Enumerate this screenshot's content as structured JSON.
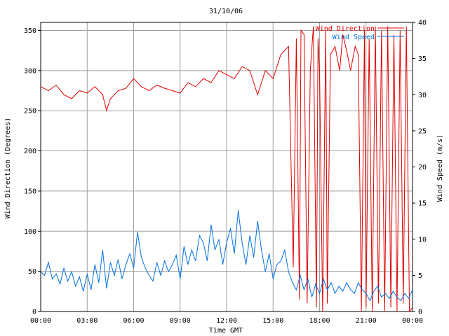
{
  "chart_data": {
    "type": "line",
    "title": "31/10/06",
    "xlabel": "Time GMT",
    "ylabel_left": "Wind Direction (Degrees)",
    "ylabel_right": "Wind Speed (m/s)",
    "x_unit": "hours GMT",
    "xlim": [
      0,
      24
    ],
    "ylim_left": [
      0,
      360
    ],
    "ylim_right": [
      0,
      40
    ],
    "x_ticks": [
      {
        "value": 0,
        "label": "00:00"
      },
      {
        "value": 3,
        "label": "03:00"
      },
      {
        "value": 6,
        "label": "06:00"
      },
      {
        "value": 9,
        "label": "09:00"
      },
      {
        "value": 12,
        "label": "12:00"
      },
      {
        "value": 15,
        "label": "15:00"
      },
      {
        "value": 18,
        "label": "18:00"
      },
      {
        "value": 21,
        "label": "21:00"
      },
      {
        "value": 24,
        "label": "00:00"
      }
    ],
    "y_ticks_left": [
      0,
      50,
      100,
      150,
      200,
      250,
      300,
      350
    ],
    "y_ticks_right": [
      0,
      5,
      10,
      15,
      20,
      25,
      30,
      35,
      40
    ],
    "grid": true,
    "legend_position": "top-right",
    "series": [
      {
        "name": "Wind Direction",
        "axis": "left",
        "color": "#e00000",
        "x": [
          0.0,
          0.5,
          1.0,
          1.5,
          2.0,
          2.5,
          3.0,
          3.5,
          4.0,
          4.25,
          4.5,
          5.0,
          5.5,
          6.0,
          6.5,
          7.0,
          7.5,
          8.0,
          8.5,
          9.0,
          9.5,
          10.0,
          10.5,
          11.0,
          11.5,
          12.0,
          12.5,
          13.0,
          13.5,
          14.0,
          14.5,
          15.0,
          15.5,
          16.0,
          16.3,
          16.5,
          16.7,
          16.8,
          17.0,
          17.2,
          17.4,
          17.6,
          17.8,
          17.9,
          18.0,
          18.2,
          18.4,
          18.5,
          18.7,
          19.0,
          19.3,
          19.5,
          19.8,
          20.0,
          20.3,
          20.5,
          20.7,
          20.9,
          21.0,
          21.2,
          21.4,
          21.6,
          21.8,
          22.0,
          22.2,
          22.4,
          22.6,
          22.8,
          23.0,
          23.2,
          23.4,
          23.6,
          23.8,
          24.0
        ],
        "values": [
          280,
          275,
          282,
          270,
          265,
          275,
          272,
          280,
          270,
          250,
          265,
          275,
          278,
          290,
          280,
          275,
          282,
          278,
          275,
          272,
          285,
          280,
          290,
          285,
          300,
          295,
          290,
          305,
          300,
          270,
          300,
          290,
          320,
          330,
          55,
          340,
          15,
          350,
          345,
          10,
          300,
          355,
          5,
          340,
          300,
          0,
          350,
          10,
          320,
          330,
          300,
          345,
          320,
          300,
          330,
          320,
          0,
          350,
          5,
          340,
          0,
          355,
          10,
          350,
          0,
          355,
          5,
          345,
          0,
          350,
          10,
          355,
          0,
          5
        ]
      },
      {
        "name": "Wind Speed",
        "axis": "right",
        "color": "#0070e0",
        "x": [
          0.0,
          0.25,
          0.5,
          0.75,
          1.0,
          1.25,
          1.5,
          1.75,
          2.0,
          2.25,
          2.5,
          2.75,
          3.0,
          3.25,
          3.5,
          3.75,
          4.0,
          4.25,
          4.5,
          4.75,
          5.0,
          5.25,
          5.5,
          5.75,
          6.0,
          6.25,
          6.5,
          6.75,
          7.0,
          7.25,
          7.5,
          7.75,
          8.0,
          8.25,
          8.5,
          8.75,
          9.0,
          9.25,
          9.5,
          9.75,
          10.0,
          10.25,
          10.5,
          10.75,
          11.0,
          11.25,
          11.5,
          11.75,
          12.0,
          12.25,
          12.5,
          12.75,
          13.0,
          13.25,
          13.5,
          13.75,
          14.0,
          14.25,
          14.5,
          14.75,
          15.0,
          15.25,
          15.5,
          15.75,
          16.0,
          16.25,
          16.5,
          16.75,
          17.0,
          17.25,
          17.5,
          17.75,
          18.0,
          18.25,
          18.5,
          18.75,
          19.0,
          19.25,
          19.5,
          19.75,
          20.0,
          20.25,
          20.5,
          20.75,
          21.0,
          21.25,
          21.5,
          21.75,
          22.0,
          22.25,
          22.5,
          22.75,
          23.0,
          23.25,
          23.5,
          23.75,
          24.0
        ],
        "values": [
          5.5,
          5.0,
          6.8,
          4.5,
          5.2,
          3.8,
          6.0,
          4.2,
          5.5,
          3.5,
          4.8,
          2.8,
          5.2,
          3.0,
          6.5,
          4.0,
          8.5,
          3.2,
          6.8,
          5.0,
          7.2,
          4.5,
          6.5,
          8.0,
          6.0,
          11.0,
          7.5,
          6.0,
          5.0,
          4.2,
          6.8,
          5.0,
          7.0,
          5.5,
          6.5,
          7.8,
          4.5,
          9.0,
          6.5,
          8.5,
          7.0,
          10.5,
          9.5,
          7.0,
          12.0,
          8.5,
          10.0,
          6.5,
          9.5,
          11.5,
          8.0,
          14.0,
          9.5,
          6.5,
          10.5,
          7.5,
          12.5,
          8.5,
          5.5,
          8.0,
          4.5,
          6.5,
          7.0,
          8.5,
          5.5,
          4.0,
          3.0,
          5.0,
          3.0,
          4.5,
          2.0,
          3.8,
          2.5,
          4.5,
          3.0,
          4.0,
          2.5,
          3.5,
          2.8,
          4.0,
          3.0,
          2.5,
          4.0,
          3.0,
          2.5,
          1.5,
          2.8,
          3.5,
          2.0,
          2.5,
          1.8,
          2.8,
          2.0,
          1.5,
          2.5,
          1.8,
          3.0
        ]
      }
    ]
  }
}
